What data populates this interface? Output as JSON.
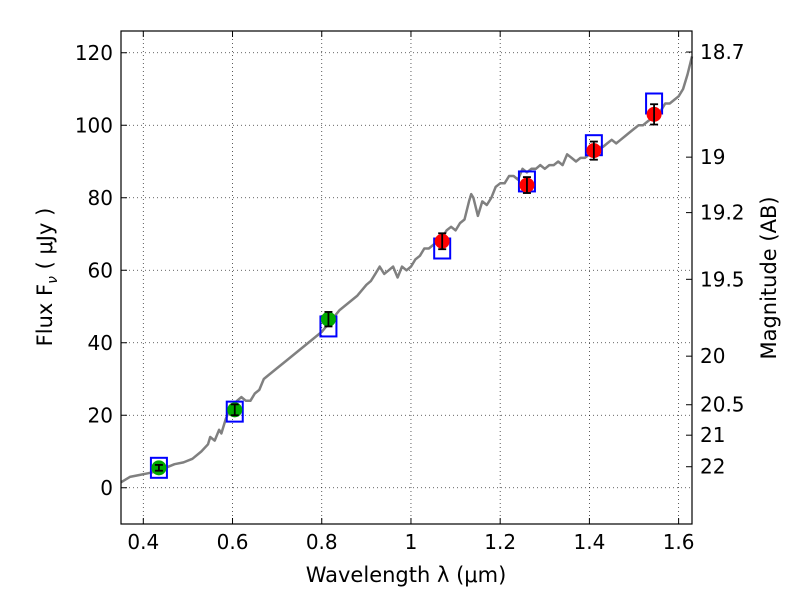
{
  "chart_data": {
    "type": "scatter",
    "xlabel": "Wavelength  λ (μm)",
    "ylabel": "Flux  F",
    "ylabel_sub": "ν",
    "ylabel_unit": "  ( μJy )",
    "y2label": "Magnitude (AB)",
    "xlim": [
      0.35,
      1.63
    ],
    "ylim": [
      -10,
      126
    ],
    "grid": true,
    "x_ticks": [
      {
        "value": 0.4,
        "label": "0.4"
      },
      {
        "value": 0.6,
        "label": "0.6"
      },
      {
        "value": 0.8,
        "label": "0.8"
      },
      {
        "value": 1.0,
        "label": "1"
      },
      {
        "value": 1.2,
        "label": "1.2"
      },
      {
        "value": 1.4,
        "label": "1.4"
      },
      {
        "value": 1.6,
        "label": "1.6"
      }
    ],
    "y_ticks": [
      {
        "value": 0,
        "label": "0"
      },
      {
        "value": 20,
        "label": "20"
      },
      {
        "value": 40,
        "label": "40"
      },
      {
        "value": 60,
        "label": "60"
      },
      {
        "value": 80,
        "label": "80"
      },
      {
        "value": 100,
        "label": "100"
      },
      {
        "value": 120,
        "label": "120"
      }
    ],
    "y2_ticks": [
      {
        "flux": 120.2,
        "label": "18.7"
      },
      {
        "flux": 91.2,
        "label": "19"
      },
      {
        "flux": 75.9,
        "label": "19.2"
      },
      {
        "flux": 57.5,
        "label": "19.5"
      },
      {
        "flux": 36.3,
        "label": "20"
      },
      {
        "flux": 22.9,
        "label": "20.5"
      },
      {
        "flux": 14.5,
        "label": "21"
      },
      {
        "flux": 5.8,
        "label": "22"
      }
    ],
    "series": [
      {
        "name": "spectrum",
        "kind": "line",
        "color": "#808080",
        "x": [
          0.35,
          0.37,
          0.39,
          0.41,
          0.43,
          0.45,
          0.47,
          0.49,
          0.51,
          0.53,
          0.545,
          0.55,
          0.56,
          0.57,
          0.575,
          0.585,
          0.595,
          0.605,
          0.61,
          0.62,
          0.63,
          0.64,
          0.65,
          0.66,
          0.67,
          0.68,
          0.7,
          0.72,
          0.74,
          0.76,
          0.78,
          0.8,
          0.82,
          0.84,
          0.86,
          0.88,
          0.9,
          0.91,
          0.92,
          0.93,
          0.94,
          0.95,
          0.96,
          0.97,
          0.98,
          0.99,
          1.0,
          1.01,
          1.02,
          1.03,
          1.04,
          1.05,
          1.06,
          1.07,
          1.08,
          1.09,
          1.1,
          1.11,
          1.12,
          1.13,
          1.135,
          1.14,
          1.15,
          1.16,
          1.17,
          1.18,
          1.19,
          1.2,
          1.21,
          1.22,
          1.23,
          1.24,
          1.25,
          1.26,
          1.27,
          1.28,
          1.29,
          1.3,
          1.31,
          1.32,
          1.33,
          1.34,
          1.35,
          1.36,
          1.37,
          1.38,
          1.39,
          1.4,
          1.41,
          1.42,
          1.43,
          1.44,
          1.45,
          1.46,
          1.47,
          1.48,
          1.49,
          1.5,
          1.51,
          1.52,
          1.53,
          1.54,
          1.55,
          1.56,
          1.57,
          1.58,
          1.59,
          1.6,
          1.61,
          1.62,
          1.63
        ],
        "y": [
          1.5,
          3,
          3.5,
          4,
          4.5,
          5.5,
          6.5,
          7,
          8,
          10,
          12,
          14,
          13,
          16,
          15,
          19,
          22,
          23,
          24,
          25,
          24,
          24,
          26,
          27,
          30,
          31,
          33,
          35,
          37,
          39,
          41,
          43,
          46,
          49,
          51,
          53,
          56,
          57,
          59,
          61,
          59,
          60,
          61,
          58,
          61,
          60,
          61,
          63,
          64,
          66,
          66,
          67,
          68,
          69,
          71,
          72,
          71,
          73,
          74,
          79,
          81,
          80,
          75,
          79,
          78,
          80,
          83,
          84,
          84,
          86,
          86,
          85,
          88,
          87,
          88,
          88,
          89,
          88,
          89,
          89,
          90,
          89,
          92,
          91,
          90,
          91,
          91,
          92,
          93,
          94,
          94,
          95,
          96,
          95,
          96,
          97,
          98,
          99,
          100,
          100,
          101,
          102,
          103,
          104,
          106,
          106,
          107,
          108,
          110,
          114,
          119
        ]
      },
      {
        "name": "model-boxes",
        "kind": "box",
        "color": "#0000ff",
        "x": [
          0.435,
          0.605,
          0.815,
          1.07,
          1.26,
          1.41,
          1.545
        ],
        "y": [
          5.5,
          21,
          44.5,
          66,
          84.5,
          94.5,
          106
        ]
      },
      {
        "name": "observed-green",
        "kind": "point",
        "color": "#00aa00",
        "x": [
          0.435,
          0.605,
          0.815
        ],
        "y": [
          5.5,
          21.5,
          46.5
        ],
        "err": [
          0.8,
          1.5,
          2
        ]
      },
      {
        "name": "observed-red",
        "kind": "point",
        "color": "#ff0000",
        "x": [
          1.07,
          1.26,
          1.41,
          1.545
        ],
        "y": [
          68,
          83.5,
          93,
          103
        ],
        "err": [
          2.2,
          2.2,
          2.5,
          2.8
        ]
      }
    ]
  }
}
